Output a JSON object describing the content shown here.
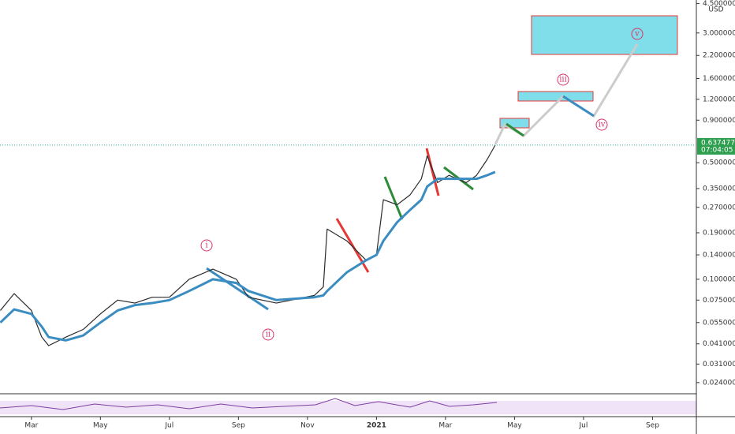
{
  "chart_data": {
    "type": "line",
    "currency": "USD",
    "log_scale": true,
    "x": [
      1.1,
      1.5,
      2.0,
      2.3,
      2.5,
      3.0,
      3.5,
      4.0,
      4.5,
      5.0,
      5.5,
      6.0,
      6.57,
      7.26,
      7.94,
      8.29,
      9.1,
      10.2,
      10.46,
      10.57,
      11.14,
      11.7,
      12.0,
      12.2,
      12.6,
      12.97,
      13.3,
      13.47,
      13.77,
      14.1,
      14.6,
      14.9,
      15.2,
      15.44
    ],
    "series": [
      {
        "color": "#2b2b2b",
        "values": [
          0.065,
          0.082,
          0.065,
          0.045,
          0.04,
          0.045,
          0.05,
          0.062,
          0.075,
          0.072,
          0.078,
          0.078,
          0.1,
          0.115,
          0.1,
          0.078,
          0.072,
          0.08,
          0.09,
          0.2,
          0.17,
          0.13,
          0.14,
          0.3,
          0.28,
          0.32,
          0.4,
          0.55,
          0.38,
          0.42,
          0.38,
          0.42,
          0.52,
          0.637
        ]
      },
      {
        "color": "#3a8cc1",
        "values": [
          0.055,
          0.066,
          0.062,
          0.052,
          0.045,
          0.043,
          0.046,
          0.055,
          0.065,
          0.07,
          0.072,
          0.075,
          0.085,
          0.1,
          0.095,
          0.085,
          0.075,
          0.078,
          0.08,
          0.085,
          0.11,
          0.13,
          0.14,
          0.17,
          0.22,
          0.26,
          0.3,
          0.36,
          0.4,
          0.4,
          0.4,
          0.4,
          0.42,
          0.44
        ]
      }
    ],
    "xlim": [
      1.09,
      21.27
    ],
    "xticks": [
      {
        "value": 2,
        "label": "Mar"
      },
      {
        "value": 4,
        "label": "May"
      },
      {
        "value": 6,
        "label": "Jul"
      },
      {
        "value": 8,
        "label": "Sep"
      },
      {
        "value": 10,
        "label": "Nov"
      },
      {
        "value": 12,
        "label": "2021"
      },
      {
        "value": 14,
        "label": "Mar"
      },
      {
        "value": 16,
        "label": "May"
      },
      {
        "value": 18,
        "label": "Jul"
      },
      {
        "value": 20,
        "label": "Sep"
      }
    ],
    "ylim": [
      0.0208,
      4.73
    ],
    "yticks": [
      {
        "value": 4.5,
        "label": "4.500000"
      },
      {
        "value": 3,
        "label": "3.000000"
      },
      {
        "value": 2.2,
        "label": "2.200000"
      },
      {
        "value": 1.6,
        "label": "1.600000"
      },
      {
        "value": 1.2,
        "label": "1.200000"
      },
      {
        "value": 0.9,
        "label": "0.900000"
      },
      {
        "value": 0.5,
        "label": "0.500000"
      },
      {
        "value": 0.35,
        "label": "0.350000"
      },
      {
        "value": 0.27,
        "label": "0.270000"
      },
      {
        "value": 0.19,
        "label": "0.190000"
      },
      {
        "value": 0.14,
        "label": "0.140000"
      },
      {
        "value": 0.1,
        "label": "0.100000"
      },
      {
        "value": 0.075,
        "label": "0.075000"
      },
      {
        "value": 0.055,
        "label": "0.055000"
      },
      {
        "value": 0.041,
        "label": "0.041000"
      },
      {
        "value": 0.031,
        "label": "0.031000"
      },
      {
        "value": 0.024,
        "label": "0.024000"
      }
    ],
    "current_price": 0.637477,
    "countdown": "07:04:05",
    "annotations": [
      "i",
      "ii",
      "iii",
      "iv",
      "v"
    ]
  }
}
